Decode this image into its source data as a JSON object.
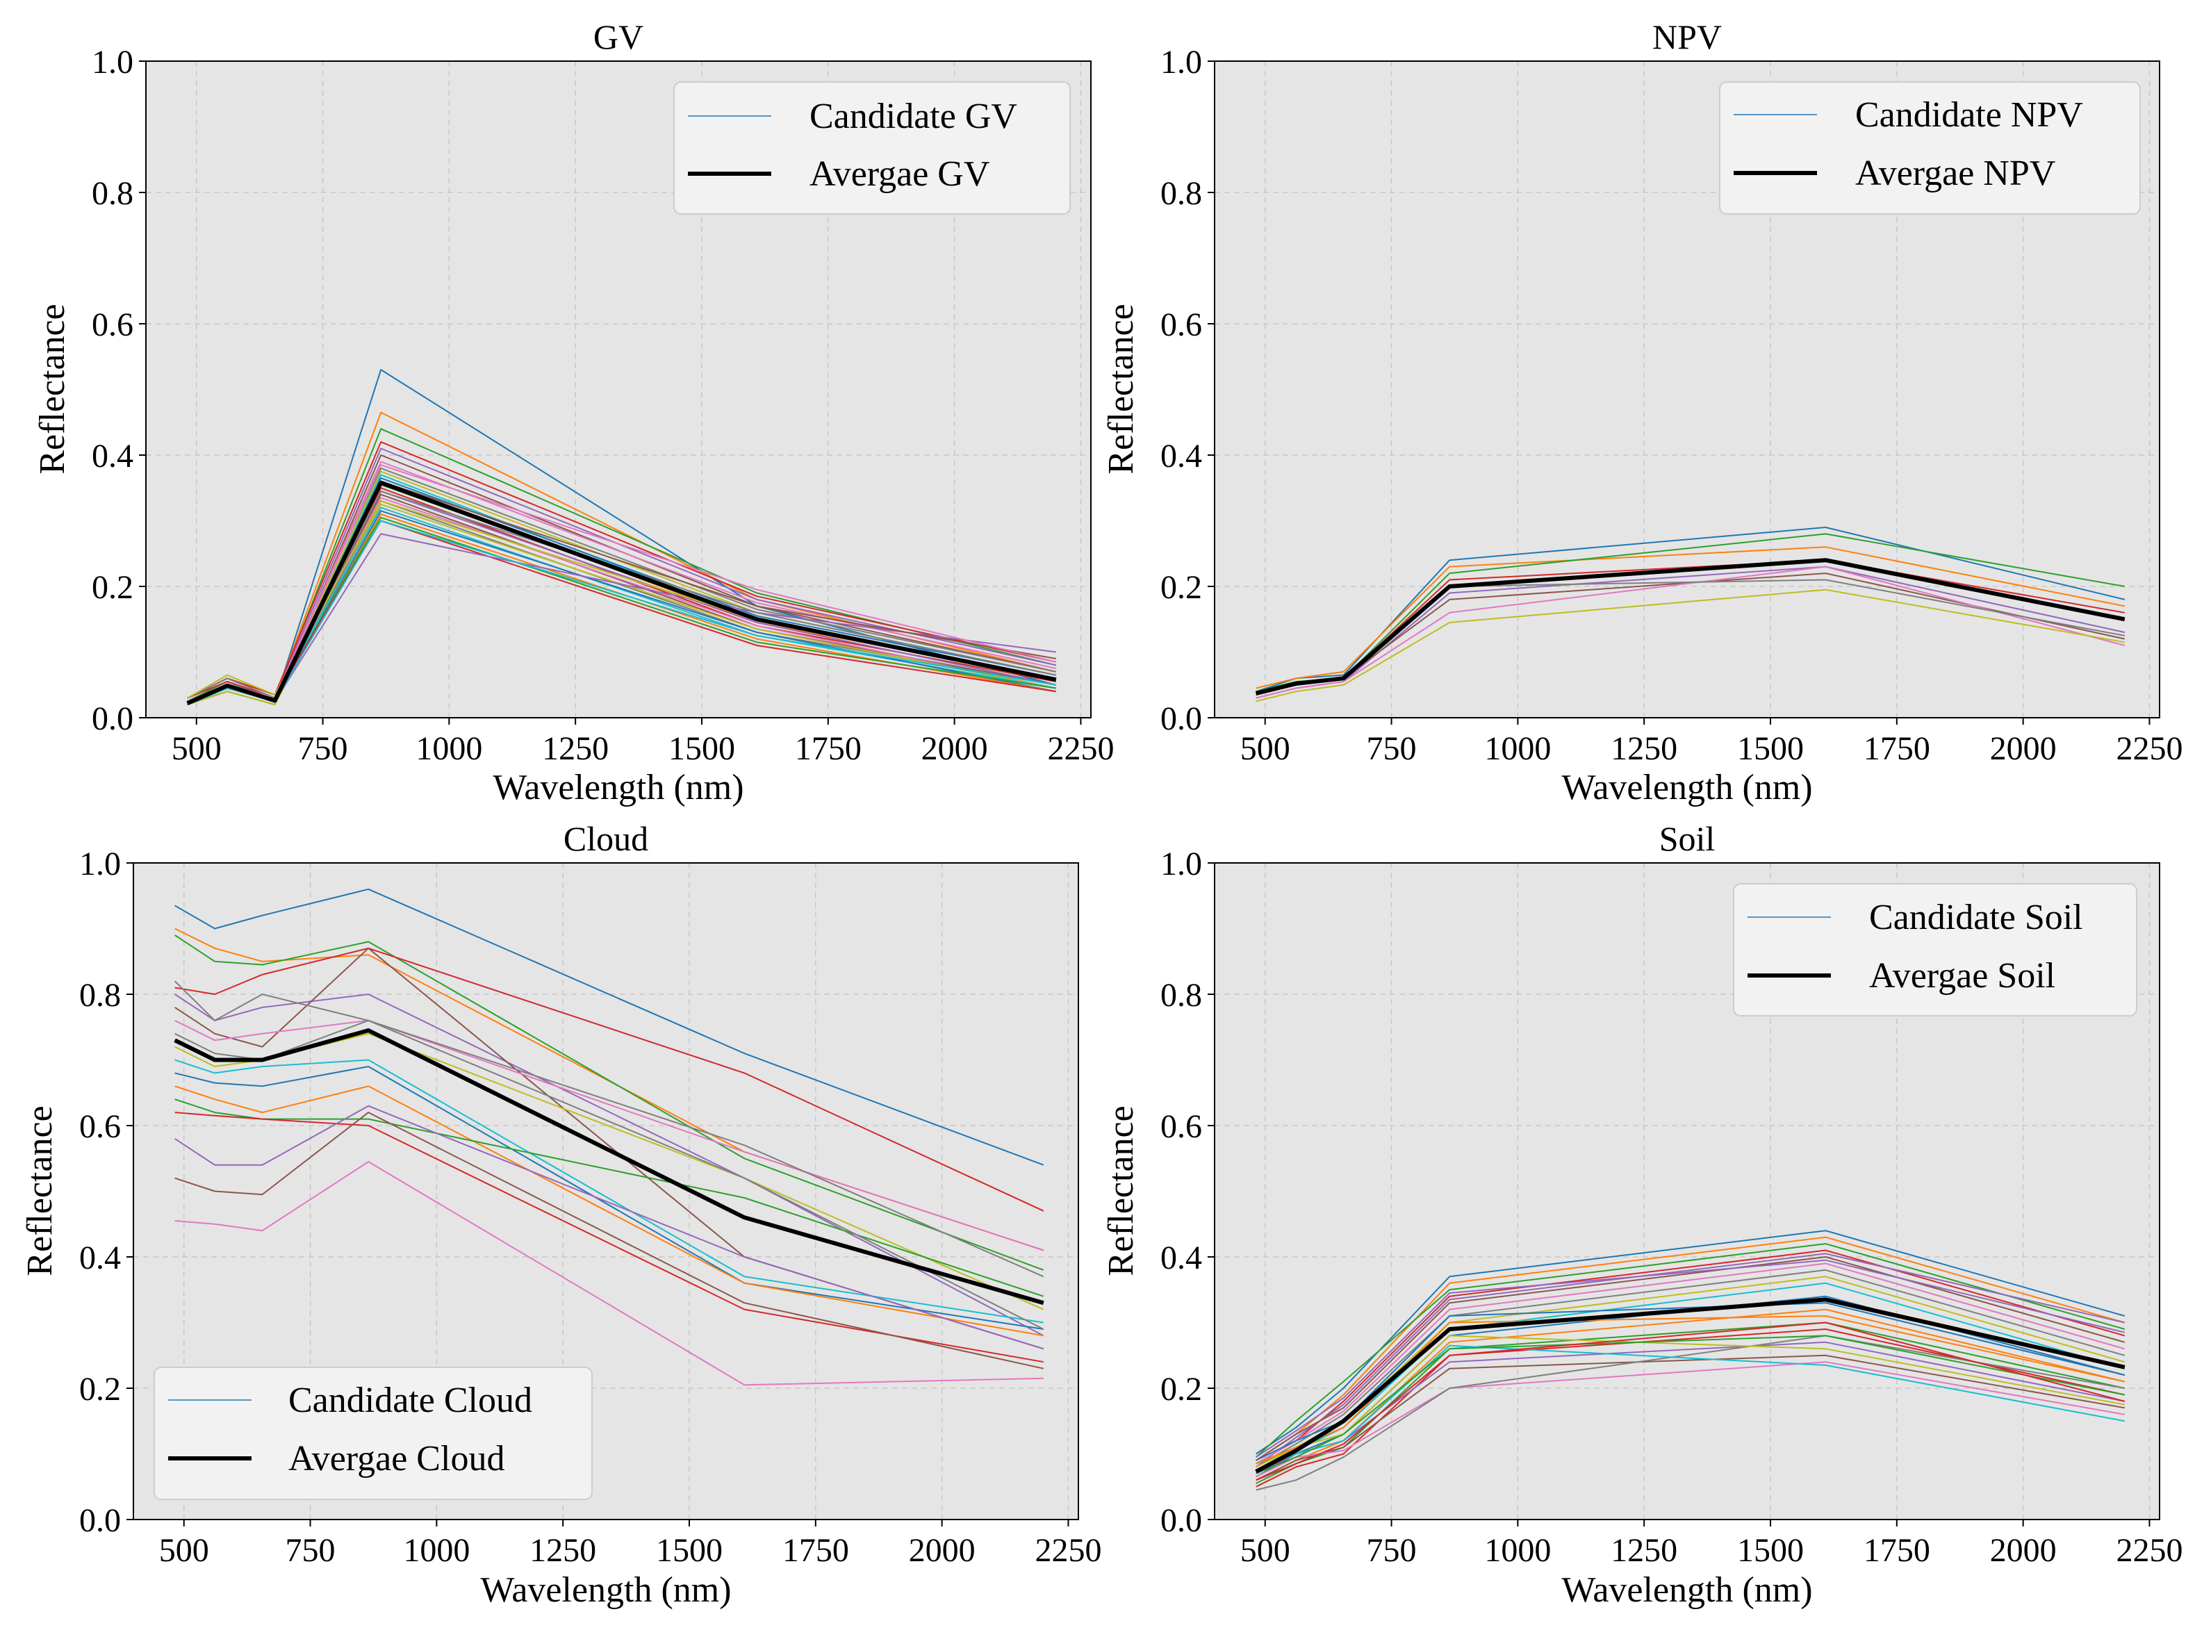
{
  "figure": {
    "background": "#ffffff",
    "panel_background": "#e5e5e5",
    "grid_color": "#c8c8c8",
    "average_color": "#000000",
    "candidate_palette": [
      "#1f77b4",
      "#ff7f0e",
      "#2ca02c",
      "#d62728",
      "#9467bd",
      "#8c564b",
      "#e377c2",
      "#7f7f7f",
      "#bcbd22",
      "#17becf"
    ]
  },
  "chart_data": [
    {
      "id": "gv",
      "type": "line",
      "title": "GV",
      "xlabel": "Wavelength (nm)",
      "ylabel": "Reflectance",
      "xlim": [
        400,
        2270
      ],
      "ylim": [
        0.0,
        1.0
      ],
      "xticks": [
        500,
        750,
        1000,
        1250,
        1500,
        1750,
        2000,
        2250
      ],
      "yticks": [
        "0.0",
        "0.2",
        "0.4",
        "0.6",
        "0.8",
        "1.0"
      ],
      "grid": true,
      "legend_position": "top-right",
      "legend": {
        "candidate": "Candidate GV",
        "average": "Avergae GV"
      },
      "x": [
        482,
        561,
        655,
        865,
        1609,
        2201
      ],
      "candidates": [
        [
          0.02,
          0.05,
          0.025,
          0.53,
          0.17,
          0.05
        ],
        [
          0.03,
          0.06,
          0.03,
          0.465,
          0.18,
          0.07
        ],
        [
          0.025,
          0.055,
          0.03,
          0.44,
          0.19,
          0.08
        ],
        [
          0.03,
          0.06,
          0.035,
          0.42,
          0.185,
          0.085
        ],
        [
          0.025,
          0.05,
          0.03,
          0.41,
          0.18,
          0.08
        ],
        [
          0.02,
          0.045,
          0.025,
          0.4,
          0.17,
          0.07
        ],
        [
          0.03,
          0.06,
          0.03,
          0.39,
          0.175,
          0.075
        ],
        [
          0.02,
          0.04,
          0.02,
          0.38,
          0.165,
          0.07
        ],
        [
          0.025,
          0.05,
          0.03,
          0.375,
          0.16,
          0.065
        ],
        [
          0.03,
          0.055,
          0.025,
          0.37,
          0.15,
          0.06
        ],
        [
          0.02,
          0.045,
          0.025,
          0.365,
          0.155,
          0.065
        ],
        [
          0.025,
          0.05,
          0.03,
          0.36,
          0.145,
          0.06
        ],
        [
          0.02,
          0.04,
          0.02,
          0.355,
          0.15,
          0.055
        ],
        [
          0.03,
          0.06,
          0.035,
          0.35,
          0.14,
          0.055
        ],
        [
          0.025,
          0.05,
          0.025,
          0.345,
          0.145,
          0.05
        ],
        [
          0.02,
          0.045,
          0.03,
          0.34,
          0.135,
          0.05
        ],
        [
          0.03,
          0.055,
          0.03,
          0.335,
          0.14,
          0.045
        ],
        [
          0.025,
          0.05,
          0.025,
          0.33,
          0.13,
          0.05
        ],
        [
          0.02,
          0.04,
          0.02,
          0.325,
          0.135,
          0.045
        ],
        [
          0.03,
          0.055,
          0.03,
          0.32,
          0.125,
          0.045
        ],
        [
          0.025,
          0.05,
          0.025,
          0.315,
          0.13,
          0.04
        ],
        [
          0.02,
          0.045,
          0.025,
          0.31,
          0.12,
          0.04
        ],
        [
          0.025,
          0.05,
          0.03,
          0.305,
          0.115,
          0.045
        ],
        [
          0.03,
          0.055,
          0.03,
          0.3,
          0.11,
          0.04
        ],
        [
          0.025,
          0.05,
          0.025,
          0.28,
          0.16,
          0.1
        ],
        [
          0.02,
          0.045,
          0.025,
          0.36,
          0.17,
          0.09
        ],
        [
          0.025,
          0.05,
          0.03,
          0.385,
          0.195,
          0.085
        ],
        [
          0.03,
          0.06,
          0.03,
          0.345,
          0.16,
          0.065
        ],
        [
          0.03,
          0.065,
          0.035,
          0.33,
          0.15,
          0.06
        ],
        [
          0.02,
          0.045,
          0.025,
          0.3,
          0.125,
          0.05
        ]
      ],
      "average": [
        0.022,
        0.049,
        0.026,
        0.358,
        0.15,
        0.058
      ]
    },
    {
      "id": "npv",
      "type": "line",
      "title": "NPV",
      "xlabel": "Wavelength (nm)",
      "ylabel": "Reflectance",
      "xlim": [
        400,
        2270
      ],
      "ylim": [
        0.0,
        1.0
      ],
      "xticks": [
        500,
        750,
        1000,
        1250,
        1500,
        1750,
        2000,
        2250
      ],
      "yticks": [
        "0.0",
        "0.2",
        "0.4",
        "0.6",
        "0.8",
        "1.0"
      ],
      "grid": true,
      "legend_position": "top-right",
      "legend": {
        "candidate": "Candidate NPV",
        "average": "Avergae NPV"
      },
      "x": [
        482,
        561,
        655,
        865,
        1609,
        2201
      ],
      "candidates": [
        [
          0.04,
          0.06,
          0.065,
          0.24,
          0.29,
          0.18
        ],
        [
          0.045,
          0.06,
          0.07,
          0.23,
          0.26,
          0.17
        ],
        [
          0.04,
          0.055,
          0.06,
          0.22,
          0.28,
          0.2
        ],
        [
          0.035,
          0.05,
          0.06,
          0.21,
          0.24,
          0.16
        ],
        [
          0.03,
          0.045,
          0.055,
          0.19,
          0.23,
          0.13
        ],
        [
          0.035,
          0.05,
          0.06,
          0.18,
          0.22,
          0.12
        ],
        [
          0.03,
          0.045,
          0.055,
          0.16,
          0.23,
          0.11
        ],
        [
          0.035,
          0.05,
          0.06,
          0.2,
          0.21,
          0.125
        ],
        [
          0.025,
          0.04,
          0.05,
          0.145,
          0.195,
          0.115
        ]
      ],
      "average": [
        0.037,
        0.052,
        0.06,
        0.2,
        0.24,
        0.15
      ]
    },
    {
      "id": "cloud",
      "type": "line",
      "title": "Cloud",
      "xlabel": "Wavelength (nm)",
      "ylabel": "Reflectance",
      "xlim": [
        400,
        2270
      ],
      "ylim": [
        0.0,
        1.0
      ],
      "xticks": [
        500,
        750,
        1000,
        1250,
        1500,
        1750,
        2000,
        2250
      ],
      "yticks": [
        "0.0",
        "0.2",
        "0.4",
        "0.6",
        "0.8",
        "1.0"
      ],
      "grid": true,
      "legend_position": "bottom-left",
      "legend": {
        "candidate": "Candidate Cloud",
        "average": "Avergae Cloud"
      },
      "x": [
        482,
        561,
        655,
        865,
        1609,
        2201
      ],
      "candidates": [
        [
          0.935,
          0.9,
          0.92,
          0.96,
          0.71,
          0.54
        ],
        [
          0.9,
          0.87,
          0.85,
          0.86,
          0.56,
          0.41
        ],
        [
          0.89,
          0.85,
          0.845,
          0.88,
          0.55,
          0.38
        ],
        [
          0.81,
          0.8,
          0.83,
          0.87,
          0.68,
          0.47
        ],
        [
          0.8,
          0.76,
          0.78,
          0.8,
          0.52,
          0.28
        ],
        [
          0.78,
          0.74,
          0.72,
          0.87,
          0.4,
          0.26
        ],
        [
          0.76,
          0.73,
          0.74,
          0.76,
          0.56,
          0.41
        ],
        [
          0.74,
          0.71,
          0.7,
          0.76,
          0.57,
          0.37
        ],
        [
          0.72,
          0.69,
          0.7,
          0.74,
          0.52,
          0.32
        ],
        [
          0.7,
          0.68,
          0.69,
          0.7,
          0.37,
          0.3
        ],
        [
          0.68,
          0.665,
          0.66,
          0.69,
          0.36,
          0.29
        ],
        [
          0.66,
          0.64,
          0.62,
          0.66,
          0.36,
          0.28
        ],
        [
          0.64,
          0.62,
          0.61,
          0.61,
          0.49,
          0.34
        ],
        [
          0.62,
          0.615,
          0.61,
          0.6,
          0.32,
          0.24
        ],
        [
          0.58,
          0.54,
          0.54,
          0.63,
          0.4,
          0.26
        ],
        [
          0.52,
          0.5,
          0.495,
          0.62,
          0.33,
          0.23
        ],
        [
          0.455,
          0.45,
          0.44,
          0.545,
          0.205,
          0.215
        ],
        [
          0.82,
          0.76,
          0.8,
          0.76,
          0.52,
          0.29
        ]
      ],
      "average": [
        0.73,
        0.7,
        0.7,
        0.745,
        0.46,
        0.33
      ]
    },
    {
      "id": "soil",
      "type": "line",
      "title": "Soil",
      "xlabel": "Wavelength (nm)",
      "ylabel": "Reflectance",
      "xlim": [
        400,
        2270
      ],
      "ylim": [
        0.0,
        1.0
      ],
      "xticks": [
        500,
        750,
        1000,
        1250,
        1500,
        1750,
        2000,
        2250
      ],
      "yticks": [
        "0.0",
        "0.2",
        "0.4",
        "0.6",
        "0.8",
        "1.0"
      ],
      "grid": true,
      "legend_position": "top-right",
      "legend": {
        "candidate": "Candidate Soil",
        "average": "Avergae Soil"
      },
      "x": [
        482,
        561,
        655,
        865,
        1609,
        2201
      ],
      "candidates": [
        [
          0.1,
          0.14,
          0.2,
          0.37,
          0.44,
          0.31
        ],
        [
          0.09,
          0.13,
          0.19,
          0.36,
          0.43,
          0.3
        ],
        [
          0.095,
          0.15,
          0.21,
          0.35,
          0.42,
          0.29
        ],
        [
          0.085,
          0.12,
          0.18,
          0.34,
          0.41,
          0.28
        ],
        [
          0.08,
          0.125,
          0.175,
          0.335,
          0.405,
          0.3
        ],
        [
          0.09,
          0.13,
          0.17,
          0.33,
          0.4,
          0.27
        ],
        [
          0.085,
          0.12,
          0.165,
          0.32,
          0.39,
          0.26
        ],
        [
          0.08,
          0.115,
          0.16,
          0.31,
          0.38,
          0.25
        ],
        [
          0.075,
          0.11,
          0.15,
          0.3,
          0.37,
          0.24
        ],
        [
          0.07,
          0.105,
          0.14,
          0.29,
          0.36,
          0.23
        ],
        [
          0.065,
          0.1,
          0.13,
          0.28,
          0.34,
          0.22
        ],
        [
          0.06,
          0.09,
          0.12,
          0.27,
          0.32,
          0.21
        ],
        [
          0.055,
          0.085,
          0.11,
          0.26,
          0.3,
          0.2
        ],
        [
          0.05,
          0.08,
          0.1,
          0.25,
          0.29,
          0.19
        ],
        [
          0.07,
          0.1,
          0.12,
          0.24,
          0.27,
          0.18
        ],
        [
          0.06,
          0.09,
          0.11,
          0.23,
          0.25,
          0.17
        ],
        [
          0.065,
          0.095,
          0.105,
          0.2,
          0.24,
          0.16
        ],
        [
          0.045,
          0.06,
          0.095,
          0.2,
          0.28,
          0.2
        ],
        [
          0.08,
          0.11,
          0.13,
          0.28,
          0.26,
          0.175
        ],
        [
          0.075,
          0.1,
          0.12,
          0.265,
          0.235,
          0.15
        ],
        [
          0.09,
          0.12,
          0.15,
          0.31,
          0.33,
          0.22
        ],
        [
          0.085,
          0.11,
          0.14,
          0.3,
          0.31,
          0.21
        ],
        [
          0.07,
          0.095,
          0.13,
          0.26,
          0.28,
          0.19
        ],
        [
          0.06,
          0.085,
          0.115,
          0.25,
          0.3,
          0.18
        ],
        [
          0.095,
          0.135,
          0.185,
          0.345,
          0.395,
          0.285
        ]
      ],
      "average": [
        0.073,
        0.105,
        0.15,
        0.29,
        0.335,
        0.232
      ]
    }
  ]
}
